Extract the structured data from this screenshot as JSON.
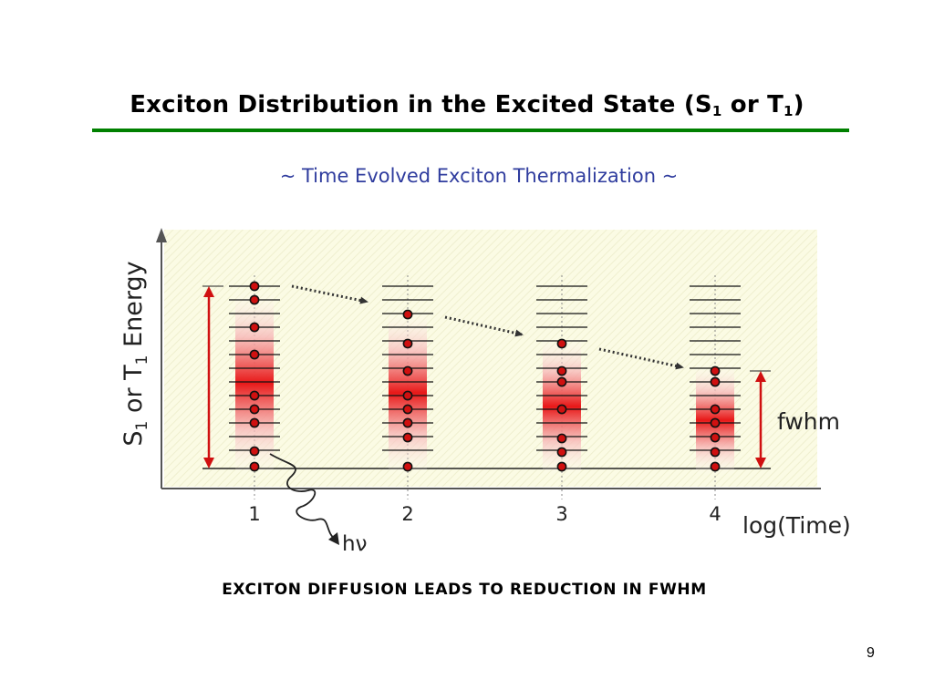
{
  "slide": {
    "title_main": "Exciton Distribution in the Excited State (S",
    "title_sub1": "1",
    "title_mid": " or T",
    "title_sub2": "1",
    "title_end": ")",
    "subtitle": "~ Time Evolved Exciton Thermalization ~",
    "caption": "EXCITON DIFFUSION LEADS TO REDUCTION IN FWHM",
    "page_number": "9"
  },
  "figure": {
    "y_axis": {
      "p1": "S",
      "s1": "1",
      "p2": " or T",
      "s2": "1",
      "p3": " Energy"
    },
    "x_axis_label": "log(Time)",
    "ticks": [
      "1",
      "2",
      "3",
      "4"
    ],
    "emission_label": "hν",
    "fwhm_label": "fwhm",
    "colors": {
      "plot_bg": "#fbfbe4",
      "red": "#d01010",
      "dot_edge": "#111111",
      "arrow": "#333333"
    }
  }
}
